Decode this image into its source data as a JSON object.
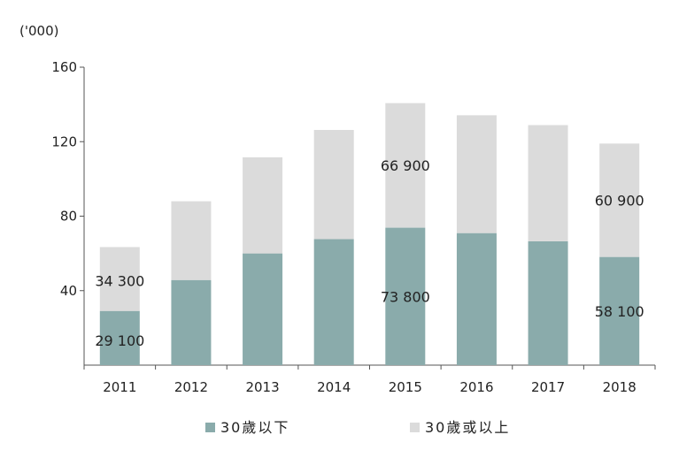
{
  "chart_data": {
    "type": "bar",
    "stacked": true,
    "unit_label": "('000)",
    "categories": [
      "2011",
      "2012",
      "2013",
      "2014",
      "2015",
      "2016",
      "2017",
      "2018"
    ],
    "series": [
      {
        "name": "30歲以下",
        "color": "#8aabab",
        "values": [
          29.1,
          45.7,
          60.0,
          67.7,
          73.8,
          70.9,
          66.5,
          58.1
        ]
      },
      {
        "name": "30歲或以上",
        "color": "#dbdbdb",
        "values": [
          34.3,
          42.3,
          51.6,
          58.6,
          66.9,
          63.3,
          62.4,
          60.9
        ]
      }
    ],
    "data_labels": [
      {
        "series": 1,
        "index": 0,
        "text": "34 300"
      },
      {
        "series": 0,
        "index": 0,
        "text": "29 100"
      },
      {
        "series": 1,
        "index": 4,
        "text": "66 900"
      },
      {
        "series": 0,
        "index": 4,
        "text": "73 800"
      },
      {
        "series": 1,
        "index": 7,
        "text": "60 900"
      },
      {
        "series": 0,
        "index": 7,
        "text": "58 100"
      }
    ],
    "yticks": [
      40,
      80,
      120,
      160
    ],
    "ylim": [
      0,
      160
    ],
    "grid": false,
    "legend_position": "bottom"
  }
}
